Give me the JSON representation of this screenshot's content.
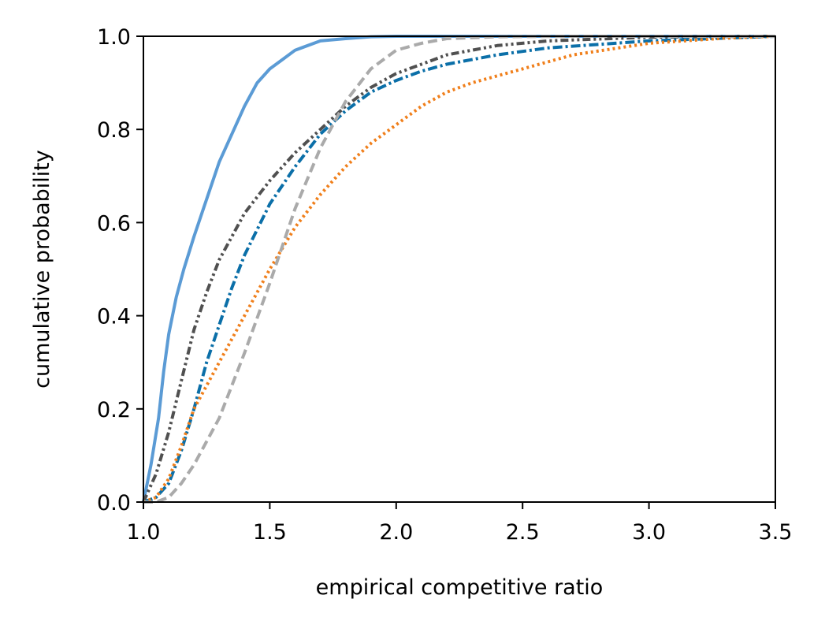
{
  "chart_data": {
    "type": "line",
    "title": "",
    "xlabel": "empirical competitive ratio",
    "ylabel": "cumulative probability",
    "xlim": [
      1.0,
      3.5
    ],
    "ylim": [
      0.0,
      1.0
    ],
    "xticks": [
      "1.0",
      "1.5",
      "2.0",
      "2.5",
      "3.0",
      "3.5"
    ],
    "yticks": [
      "0.0",
      "0.2",
      "0.4",
      "0.6",
      "0.8",
      "1.0"
    ],
    "grid": false,
    "legend": "none",
    "series": [
      {
        "color": "#5b9bd5",
        "style": "solid",
        "x": [
          1.0,
          1.03,
          1.06,
          1.08,
          1.1,
          1.13,
          1.16,
          1.2,
          1.25,
          1.3,
          1.35,
          1.4,
          1.45,
          1.5,
          1.55,
          1.6,
          1.7,
          1.8,
          1.9,
          2.0,
          2.2,
          2.6,
          3.5
        ],
        "y": [
          0.0,
          0.08,
          0.18,
          0.28,
          0.36,
          0.44,
          0.5,
          0.57,
          0.65,
          0.73,
          0.79,
          0.85,
          0.9,
          0.93,
          0.95,
          0.97,
          0.99,
          0.995,
          0.999,
          1.0,
          1.0,
          1.0,
          1.0
        ]
      },
      {
        "color": "#505050",
        "style": "dashdotdot",
        "x": [
          1.0,
          1.05,
          1.1,
          1.15,
          1.2,
          1.25,
          1.3,
          1.35,
          1.4,
          1.5,
          1.6,
          1.7,
          1.8,
          1.9,
          2.0,
          2.1,
          2.2,
          2.4,
          2.6,
          3.0,
          3.5
        ],
        "y": [
          0.0,
          0.06,
          0.15,
          0.26,
          0.37,
          0.45,
          0.52,
          0.57,
          0.62,
          0.69,
          0.75,
          0.8,
          0.85,
          0.89,
          0.92,
          0.94,
          0.96,
          0.98,
          0.99,
          0.998,
          1.0
        ]
      },
      {
        "color": "#0b6fa8",
        "style": "dashdot",
        "x": [
          1.0,
          1.05,
          1.1,
          1.15,
          1.2,
          1.25,
          1.3,
          1.35,
          1.4,
          1.5,
          1.6,
          1.7,
          1.8,
          1.9,
          2.0,
          2.1,
          2.2,
          2.4,
          2.6,
          3.0,
          3.5
        ],
        "y": [
          0.0,
          0.01,
          0.04,
          0.11,
          0.2,
          0.3,
          0.38,
          0.46,
          0.53,
          0.64,
          0.72,
          0.79,
          0.84,
          0.88,
          0.905,
          0.925,
          0.94,
          0.96,
          0.975,
          0.99,
          1.0
        ]
      },
      {
        "color": "#f07f1b",
        "style": "dotted",
        "x": [
          1.0,
          1.05,
          1.1,
          1.15,
          1.2,
          1.3,
          1.4,
          1.5,
          1.6,
          1.7,
          1.8,
          1.9,
          2.0,
          2.1,
          2.2,
          2.3,
          2.5,
          2.7,
          3.0,
          3.3,
          3.5
        ],
        "y": [
          0.0,
          0.01,
          0.05,
          0.12,
          0.2,
          0.3,
          0.4,
          0.5,
          0.59,
          0.66,
          0.72,
          0.77,
          0.81,
          0.85,
          0.88,
          0.9,
          0.93,
          0.96,
          0.985,
          0.996,
          1.0
        ]
      },
      {
        "color": "#aaaaaa",
        "style": "dashed",
        "x": [
          1.0,
          1.05,
          1.1,
          1.15,
          1.2,
          1.3,
          1.4,
          1.5,
          1.6,
          1.7,
          1.8,
          1.9,
          2.0,
          2.1,
          2.2,
          2.4,
          2.7,
          3.0,
          3.5
        ],
        "y": [
          0.0,
          0.0,
          0.01,
          0.04,
          0.08,
          0.18,
          0.32,
          0.47,
          0.63,
          0.76,
          0.86,
          0.93,
          0.97,
          0.985,
          0.995,
          0.999,
          1.0,
          1.0,
          1.0
        ]
      }
    ]
  }
}
